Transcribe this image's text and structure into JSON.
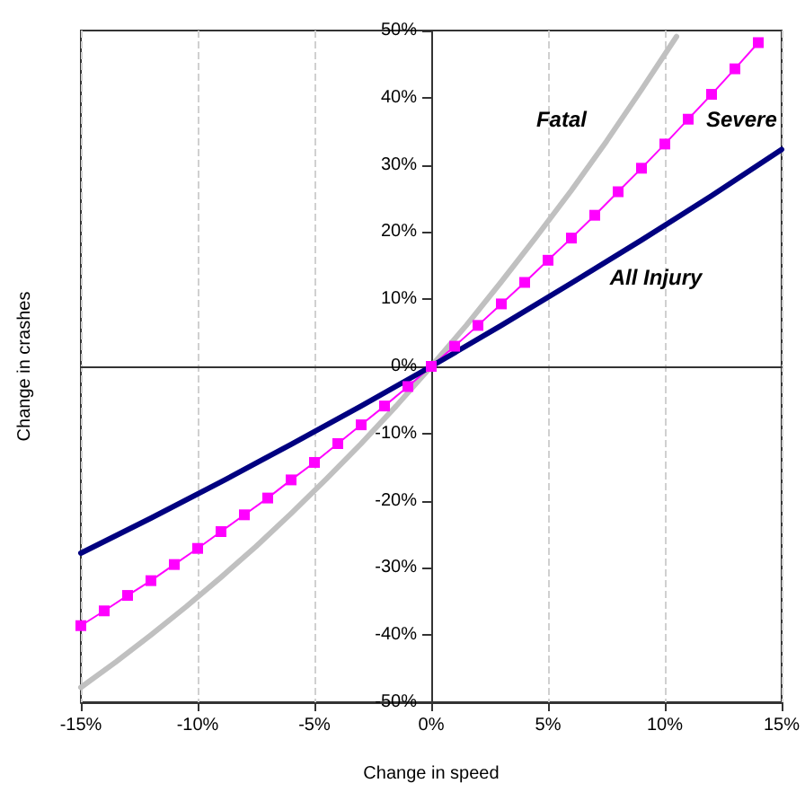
{
  "chart_data": {
    "type": "line",
    "xlabel": "Change in speed",
    "ylabel": "Change in crashes",
    "xlim": [
      -15,
      15
    ],
    "xticks": [
      {
        "value": -15,
        "label": "-15%"
      },
      {
        "value": -10,
        "label": "-10%"
      },
      {
        "value": -5,
        "label": "-5%"
      },
      {
        "value": 0,
        "label": "0%"
      },
      {
        "value": 5,
        "label": "5%"
      },
      {
        "value": 10,
        "label": "10%"
      },
      {
        "value": 15,
        "label": "15%"
      }
    ],
    "ylim": [
      -50,
      50
    ],
    "yticks": [
      {
        "value": -50,
        "label": "-50%"
      },
      {
        "value": -40,
        "label": "-40%"
      },
      {
        "value": -30,
        "label": "-30%"
      },
      {
        "value": -20,
        "label": "-20%"
      },
      {
        "value": -10,
        "label": "-10%"
      },
      {
        "value": 0,
        "label": "0%"
      },
      {
        "value": 10,
        "label": "10%"
      },
      {
        "value": 20,
        "label": "20%"
      },
      {
        "value": 30,
        "label": "30%"
      },
      {
        "value": 40,
        "label": "40%"
      },
      {
        "value": 50,
        "label": "50%"
      }
    ],
    "grid": "x",
    "line_style": "solid",
    "series": [
      {
        "name": "Fatal",
        "color": "#c0c0c0",
        "marker": "none",
        "x": [
          -15,
          -13.5,
          -12,
          -10.5,
          -9,
          -7.5,
          -6,
          -4.5,
          -3,
          -1.5,
          0,
          1.5,
          3,
          4.5,
          6,
          7.5,
          9,
          10.5
        ],
        "values": [
          -47.8,
          -44.0,
          -40.0,
          -35.8,
          -31.4,
          -26.8,
          -21.9,
          -16.8,
          -11.5,
          -5.9,
          0,
          6.1,
          12.6,
          19.3,
          26.2,
          33.5,
          41.2,
          49.1
        ]
      },
      {
        "name": "Severe",
        "color": "#ff00ff",
        "marker": "square",
        "x": [
          -15,
          -14,
          -13,
          -12,
          -11,
          -10,
          -9,
          -8,
          -7,
          -6,
          -5,
          -4,
          -3,
          -2,
          -1,
          0,
          1,
          2,
          3,
          4,
          5,
          6,
          7,
          8,
          9,
          10,
          11,
          12,
          13,
          14
        ],
        "values": [
          -38.6,
          -36.4,
          -34.1,
          -31.9,
          -29.5,
          -27.1,
          -24.6,
          -22.1,
          -19.6,
          -16.9,
          -14.3,
          -11.5,
          -8.7,
          -5.9,
          -3.0,
          0,
          3.0,
          6.1,
          9.3,
          12.5,
          15.8,
          19.1,
          22.5,
          26.0,
          29.5,
          33.1,
          36.8,
          40.5,
          44.3,
          48.2
        ]
      },
      {
        "name": "All Injury",
        "color": "#000080",
        "marker": "none",
        "x": [
          -15,
          -12,
          -9,
          -6,
          -3,
          0,
          3,
          6,
          9,
          12,
          15
        ],
        "values": [
          -27.8,
          -22.6,
          -17.2,
          -11.6,
          -5.9,
          0,
          6.1,
          12.4,
          18.8,
          25.4,
          32.3
        ]
      }
    ]
  }
}
